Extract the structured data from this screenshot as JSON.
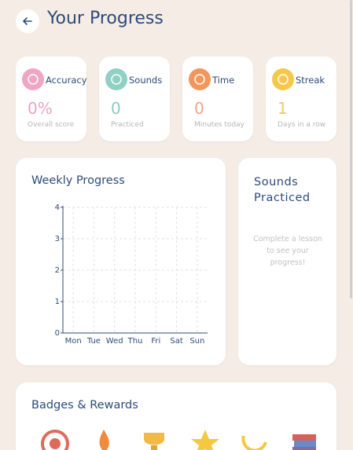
{
  "header": {
    "title": "Your Progress"
  },
  "stats": [
    {
      "label": "Accuracy",
      "value": "0%",
      "caption": "Overall score",
      "color": "#eea6c4",
      "value_color": "#e9a3c2"
    },
    {
      "label": "Sounds",
      "value": "0",
      "caption": "Practiced",
      "color": "#8fd1c5",
      "value_color": "#8ccbc0"
    },
    {
      "label": "Time",
      "value": "0",
      "caption": "Minutes today",
      "color": "#f1965c",
      "value_color": "#f1a486"
    },
    {
      "label": "Streak",
      "value": "1",
      "caption": "Days in a row",
      "color": "#f4c94b",
      "value_color": "#e9ca6a"
    }
  ],
  "weekly_progress": {
    "title": "Weekly Progress",
    "categories": [
      "Mon",
      "Tue",
      "Wed",
      "Thu",
      "Fri",
      "Sat",
      "Sun"
    ],
    "ylim": [
      0,
      4
    ],
    "yticks": [
      0,
      1,
      2,
      3,
      4
    ],
    "grid": true
  },
  "sounds_practiced": {
    "title": "Sounds Practiced",
    "message": "Complete a lesson to see your progress!"
  },
  "badges": {
    "title": "Badges & Rewards"
  }
}
